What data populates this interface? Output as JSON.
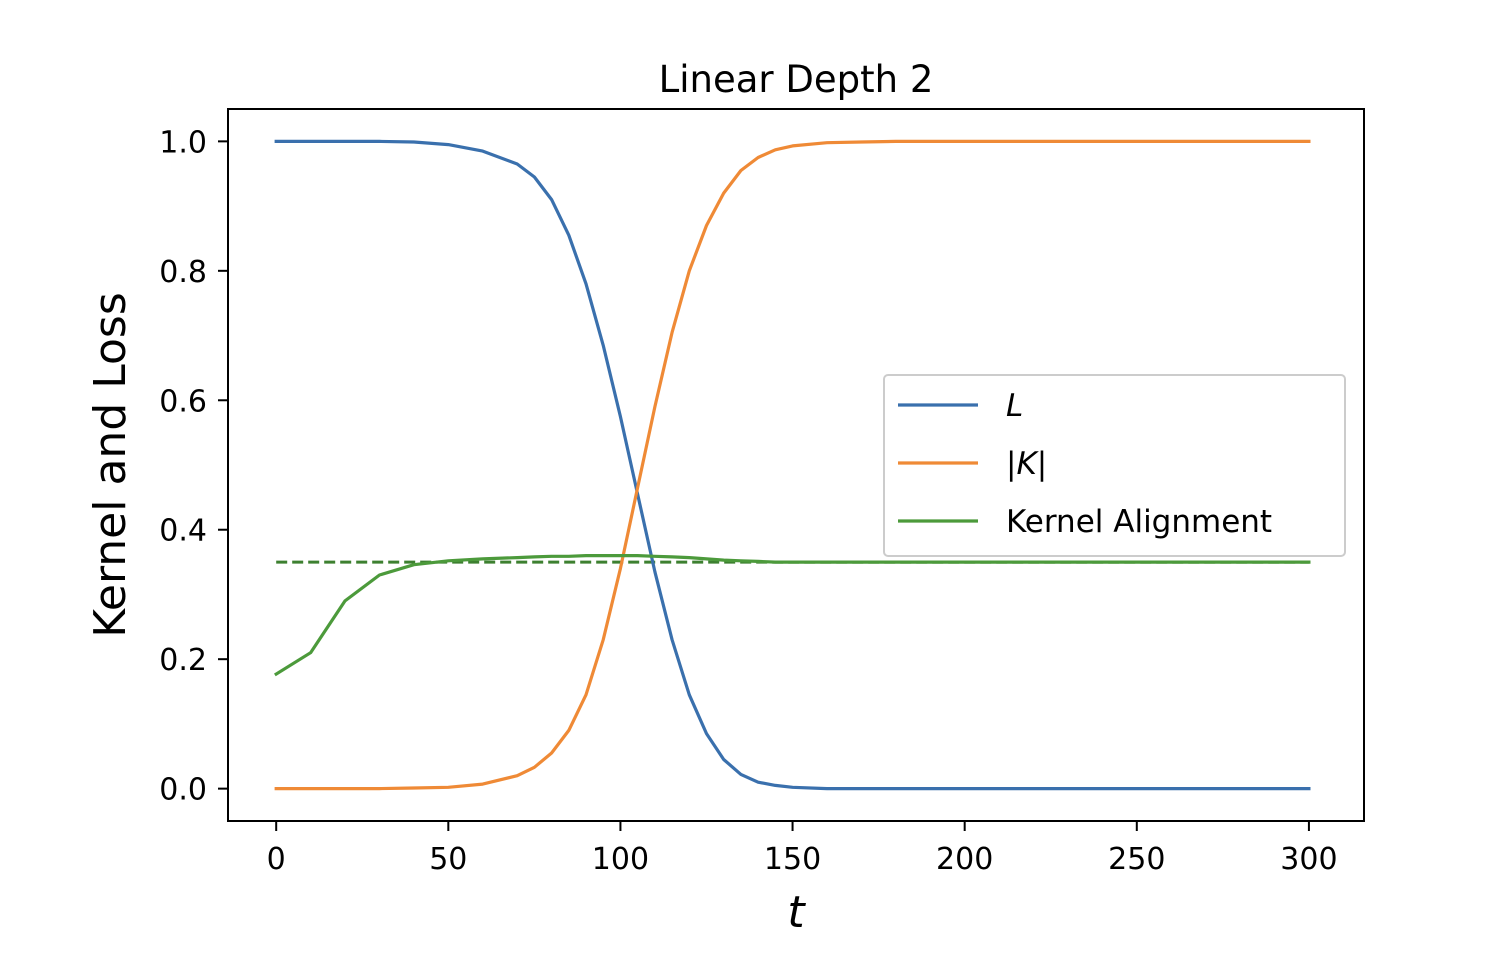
{
  "chart_data": {
    "type": "line",
    "title": "Linear Depth 2",
    "xlabel": "t",
    "ylabel": "Kernel and Loss",
    "xlim": [
      -14,
      316
    ],
    "ylim": [
      -0.05,
      1.05
    ],
    "xticks": [
      0,
      50,
      100,
      150,
      200,
      250,
      300
    ],
    "xtick_labels": [
      "0",
      "50",
      "100",
      "150",
      "200",
      "250",
      "300"
    ],
    "yticks": [
      0.0,
      0.2,
      0.4,
      0.6,
      0.8,
      1.0
    ],
    "ytick_labels": [
      "0.0",
      "0.2",
      "0.4",
      "0.6",
      "0.8",
      "1.0"
    ],
    "grid": false,
    "legend_position": "center-right",
    "x": [
      0,
      10,
      20,
      30,
      40,
      50,
      60,
      70,
      75,
      80,
      85,
      90,
      95,
      100,
      105,
      110,
      115,
      120,
      125,
      130,
      135,
      140,
      145,
      150,
      160,
      170,
      180,
      200,
      250,
      300
    ],
    "series": [
      {
        "name": "L",
        "label_italic": true,
        "color": "#3a70ad",
        "style": "solid",
        "values": [
          1.0,
          1.0,
          1.0,
          1.0,
          0.999,
          0.995,
          0.985,
          0.965,
          0.945,
          0.91,
          0.855,
          0.78,
          0.685,
          0.575,
          0.455,
          0.335,
          0.23,
          0.145,
          0.085,
          0.045,
          0.022,
          0.01,
          0.005,
          0.002,
          0.0,
          0.0,
          0.0,
          0.0,
          0.0,
          0.0
        ]
      },
      {
        "name": "|K|",
        "label_italic": true,
        "color": "#ef8a36",
        "style": "solid",
        "values": [
          0.0,
          0.0,
          0.0,
          0.0,
          0.001,
          0.002,
          0.007,
          0.02,
          0.033,
          0.055,
          0.09,
          0.145,
          0.23,
          0.34,
          0.465,
          0.59,
          0.705,
          0.8,
          0.87,
          0.92,
          0.955,
          0.975,
          0.987,
          0.993,
          0.998,
          0.999,
          1.0,
          1.0,
          1.0,
          1.0
        ]
      },
      {
        "name": "Kernel Alignment",
        "color": "#4c9a3b",
        "style": "solid",
        "values": [
          0.177,
          0.21,
          0.29,
          0.33,
          0.346,
          0.352,
          0.355,
          0.357,
          0.358,
          0.359,
          0.359,
          0.36,
          0.36,
          0.36,
          0.36,
          0.359,
          0.358,
          0.357,
          0.355,
          0.353,
          0.352,
          0.351,
          0.35,
          0.35,
          0.35,
          0.35,
          0.35,
          0.35,
          0.35,
          0.35
        ]
      }
    ],
    "reference_line": {
      "style": "dashed",
      "color": "#3d8030",
      "y": 0.35,
      "x_range": [
        0,
        300
      ]
    }
  }
}
